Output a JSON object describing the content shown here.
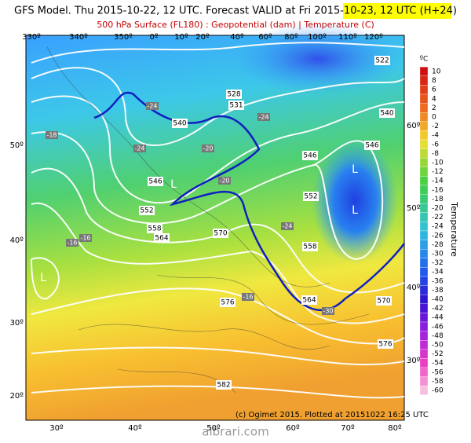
{
  "header": {
    "title": "GFS Model. Thu 2015-10-22, 12 UTC. Forecast VALID at Fri 2015-10-23, 12 UTC (H+24)",
    "subtitle": "500 hPa Surface (FL180) : Geopotential (dam) | Temperature (C)"
  },
  "map": {
    "top_longitudes": [
      "330º",
      "340º",
      "350º",
      "0º",
      "10º",
      "20º",
      "40º",
      "60º",
      "80º",
      "100º",
      "110º",
      "120º"
    ],
    "bottom_longitudes": [
      "30º",
      "40º",
      "50º",
      "60º",
      "70º",
      "80º"
    ],
    "left_latitudes": [
      "50º",
      "40º",
      "30º",
      "20º"
    ],
    "right_latitudes": [
      "60º",
      "50º",
      "40º",
      "30º"
    ],
    "geopotential_labels": [
      "522",
      "528",
      "531",
      "540",
      "540",
      "546",
      "546",
      "546",
      "552",
      "552",
      "558",
      "564",
      "570",
      "558",
      "564",
      "570",
      "576",
      "576",
      "582"
    ],
    "temperature_labels": [
      "-24",
      "-24",
      "-20",
      "-20",
      "-24",
      "-24",
      "-16",
      "-16",
      "-16",
      "-30",
      "-18"
    ],
    "lows": [
      "L",
      "L",
      "L",
      "L"
    ],
    "credit": "(c) Ogimet 2015. Plotted at 20151022 16:25 UTC"
  },
  "colorbar": {
    "unit": "ºC",
    "title": "Temperature",
    "labels": [
      10,
      8,
      6,
      4,
      2,
      0,
      -2,
      -4,
      -6,
      -8,
      -10,
      -12,
      -14,
      -16,
      -18,
      -20,
      -22,
      -24,
      -26,
      -28,
      -30,
      -32,
      -34,
      -36,
      -38,
      -40,
      -42,
      -44,
      -46,
      -48,
      -50,
      -52,
      -54,
      -56,
      -58,
      -60
    ]
  },
  "watermark": "albrari.com"
}
